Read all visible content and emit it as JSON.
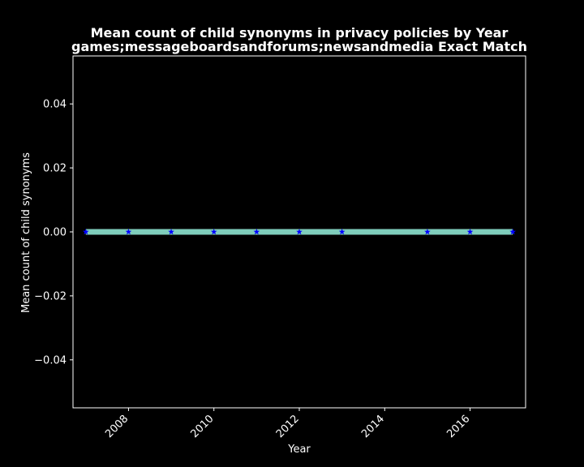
{
  "chart_data": {
    "type": "line",
    "title": "Mean count of child synonyms in privacy policies by Year",
    "subtitle": "games;messageboardsandforums;newsandmedia Exact Match",
    "xlabel": "Year",
    "ylabel": "Mean count of child synonyms",
    "xlim": [
      2006.7,
      2017.3
    ],
    "ylim": [
      -0.055,
      0.055
    ],
    "x_ticks": [
      2008,
      2010,
      2012,
      2014,
      2016
    ],
    "y_ticks": [
      0.04,
      0.02,
      0.0,
      -0.02,
      -0.04
    ],
    "y_tick_labels": [
      "0.04",
      "0.02",
      "0.00",
      "−0.02",
      "−0.04"
    ],
    "grid": false,
    "series": [
      {
        "x": [
          2007,
          2008,
          2009,
          2010,
          2011,
          2012,
          2013,
          2015,
          2016,
          2017
        ],
        "y": [
          0,
          0,
          0,
          0,
          0,
          0,
          0,
          0,
          0,
          0
        ],
        "line_color": "#7fcdbb",
        "marker": "star",
        "marker_color": "#0000ff"
      }
    ],
    "colors": {
      "background": "#000000",
      "axes": "#ffffff",
      "text": "#ffffff"
    }
  }
}
